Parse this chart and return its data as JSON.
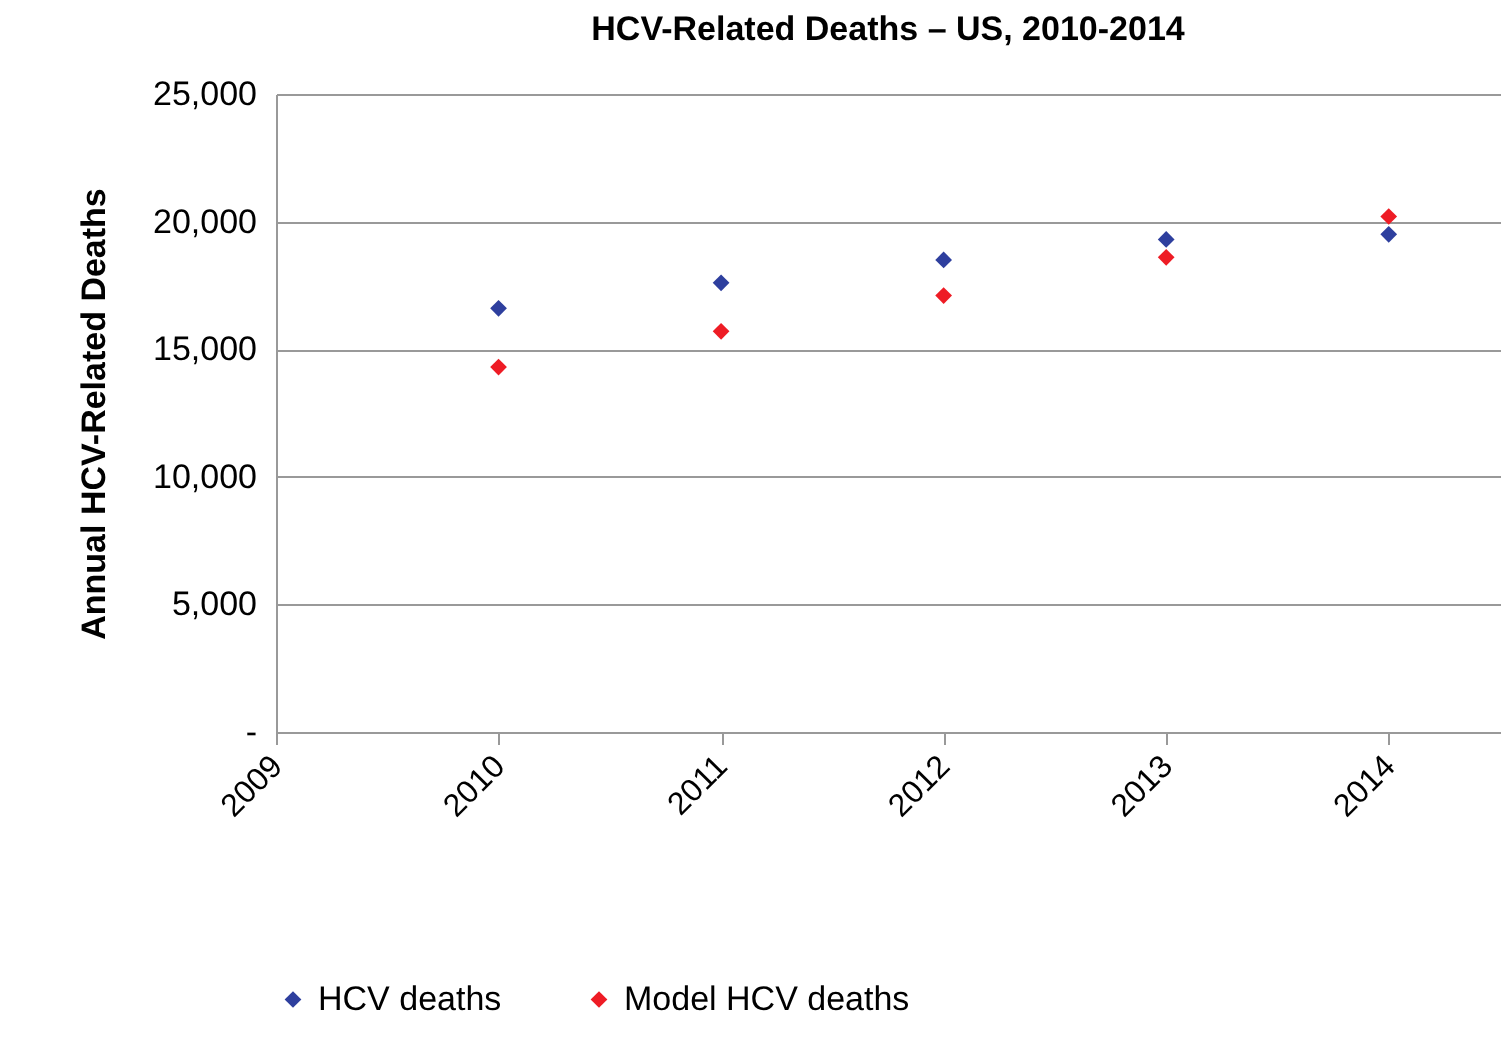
{
  "chart_data": {
    "type": "scatter",
    "title": "HCV-Related Deaths – US, 2010-2014",
    "ylabel": "Annual HCV-Related Deaths",
    "x": [
      2010,
      2011,
      2012,
      2013,
      2014
    ],
    "series": [
      {
        "name": "HCV deaths",
        "color": "#2e3f9e",
        "values": [
          16600,
          17600,
          18500,
          19300,
          19500
        ]
      },
      {
        "name": "Model HCV deaths",
        "color": "#ee1c25",
        "values": [
          14300,
          15700,
          17100,
          18600,
          20200
        ]
      }
    ],
    "xlim": [
      2009,
      2014.5
    ],
    "xticks": [
      2009,
      2010,
      2011,
      2012,
      2013,
      2014
    ],
    "ylim": [
      0,
      25000
    ],
    "yticks": [
      {
        "value": 0,
        "label": "-"
      },
      {
        "value": 5000,
        "label": "5,000"
      },
      {
        "value": 10000,
        "label": "10,000"
      },
      {
        "value": 15000,
        "label": "15,000"
      },
      {
        "value": 20000,
        "label": "20,000"
      },
      {
        "value": 25000,
        "label": "25,000"
      }
    ],
    "grid": "y",
    "legend": "bottom",
    "marker": "diamond"
  }
}
